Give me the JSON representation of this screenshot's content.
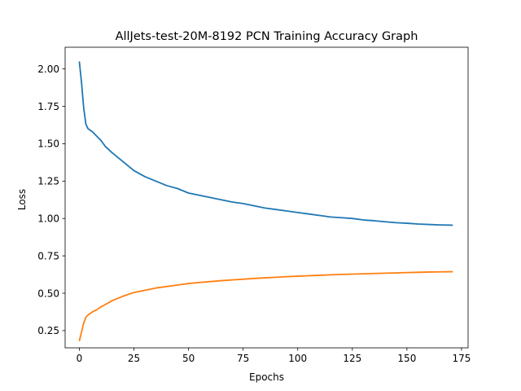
{
  "chart_data": {
    "type": "line",
    "title": "AllJets-test-20M-8192 PCN Training Accuracy Graph",
    "xlabel": "Epochs",
    "ylabel": "Loss",
    "xlim": [
      -6.5,
      178
    ],
    "ylim": [
      0.135,
      2.145
    ],
    "xticks": [
      0,
      25,
      50,
      75,
      100,
      125,
      150,
      175
    ],
    "yticks": [
      0.25,
      0.5,
      0.75,
      1.0,
      1.25,
      1.5,
      1.75,
      2.0
    ],
    "xtick_labels": [
      "0",
      "25",
      "50",
      "75",
      "100",
      "125",
      "150",
      "175"
    ],
    "ytick_labels": [
      "0.25",
      "0.50",
      "0.75",
      "1.00",
      "1.25",
      "1.50",
      "1.75",
      "2.00"
    ],
    "grid": false,
    "legend": "none",
    "series": [
      {
        "color": "#1f77b4",
        "x": [
          0,
          1,
          2,
          3,
          4,
          5,
          6,
          8,
          10,
          12,
          15,
          20,
          25,
          30,
          35,
          40,
          45,
          50,
          55,
          60,
          65,
          70,
          75,
          80,
          85,
          90,
          95,
          100,
          105,
          110,
          115,
          120,
          125,
          130,
          135,
          140,
          145,
          150,
          155,
          160,
          165,
          171
        ],
        "y": [
          2.05,
          1.91,
          1.74,
          1.63,
          1.6,
          1.59,
          1.58,
          1.55,
          1.52,
          1.48,
          1.44,
          1.38,
          1.32,
          1.28,
          1.25,
          1.22,
          1.2,
          1.17,
          1.155,
          1.14,
          1.125,
          1.11,
          1.1,
          1.085,
          1.07,
          1.06,
          1.05,
          1.04,
          1.03,
          1.02,
          1.01,
          1.005,
          1.0,
          0.99,
          0.985,
          0.978,
          0.972,
          0.968,
          0.963,
          0.96,
          0.957,
          0.955
        ]
      },
      {
        "color": "#ff7f0e",
        "x": [
          0,
          1,
          2,
          3,
          4,
          5,
          6,
          8,
          10,
          12,
          15,
          20,
          25,
          30,
          35,
          40,
          45,
          50,
          55,
          60,
          65,
          70,
          75,
          80,
          85,
          90,
          95,
          100,
          105,
          110,
          115,
          120,
          125,
          130,
          135,
          140,
          145,
          150,
          155,
          160,
          165,
          171
        ],
        "y": [
          0.18,
          0.24,
          0.3,
          0.34,
          0.355,
          0.365,
          0.375,
          0.39,
          0.41,
          0.425,
          0.45,
          0.48,
          0.505,
          0.52,
          0.535,
          0.545,
          0.555,
          0.565,
          0.572,
          0.578,
          0.584,
          0.589,
          0.594,
          0.599,
          0.603,
          0.607,
          0.611,
          0.614,
          0.617,
          0.62,
          0.623,
          0.626,
          0.628,
          0.63,
          0.632,
          0.634,
          0.636,
          0.638,
          0.64,
          0.642,
          0.643,
          0.644
        ]
      }
    ]
  }
}
